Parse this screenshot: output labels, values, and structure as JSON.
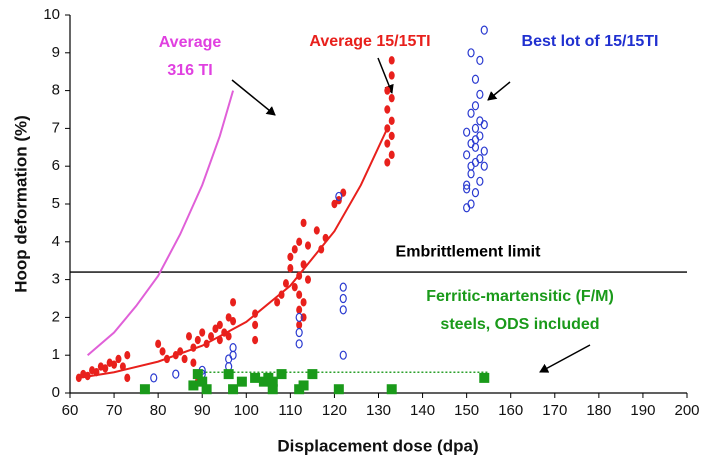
{
  "chart_data": {
    "type": "scatter",
    "xlabel": "Displacement dose (dpa)",
    "ylabel": "Hoop deformation (%)",
    "xlim": [
      60,
      200
    ],
    "ylim": [
      0,
      10
    ],
    "xticks": [
      60,
      70,
      80,
      90,
      100,
      110,
      120,
      130,
      140,
      150,
      160,
      170,
      180,
      190,
      200
    ],
    "yticks": [
      0,
      1,
      2,
      3,
      4,
      5,
      6,
      7,
      8,
      9,
      10
    ],
    "series": [
      {
        "marker": "line",
        "color": "#e060d8",
        "x": [
          64,
          70,
          75,
          80,
          85,
          90,
          94,
          97
        ],
        "y": [
          1.0,
          1.6,
          2.3,
          3.1,
          4.2,
          5.5,
          6.8,
          8.0
        ]
      },
      {
        "marker": "line",
        "color": "#e8201c",
        "x": [
          62,
          70,
          80,
          90,
          100,
          110,
          120,
          126,
          132
        ],
        "y": [
          0.4,
          0.55,
          0.83,
          1.25,
          1.88,
          2.84,
          4.28,
          5.5,
          7.0
        ]
      },
      {
        "marker": "dot",
        "color": "#e8201c",
        "x": [
          62,
          63,
          64,
          65,
          66,
          67,
          68,
          69,
          70,
          71,
          72,
          73,
          73,
          80,
          81,
          82,
          84,
          85,
          86,
          87,
          88,
          88,
          89,
          89,
          89,
          90,
          91,
          92,
          93,
          94,
          94,
          95,
          96,
          96,
          97,
          97,
          102,
          102,
          102,
          107,
          108,
          109,
          110,
          110,
          111,
          111,
          112,
          112,
          112,
          112,
          112,
          113,
          113,
          113,
          113,
          114,
          114,
          116,
          117,
          118,
          120,
          121,
          122,
          132,
          132,
          132,
          132,
          132,
          133,
          133,
          133,
          133,
          133,
          133
        ],
        "y": [
          0.4,
          0.5,
          0.45,
          0.6,
          0.55,
          0.7,
          0.65,
          0.8,
          0.75,
          0.9,
          0.7,
          1.0,
          0.4,
          1.3,
          1.1,
          0.9,
          1.0,
          1.1,
          0.9,
          1.5,
          1.2,
          0.8,
          1.4,
          0.5,
          0.3,
          1.6,
          1.3,
          1.5,
          1.7,
          1.4,
          1.8,
          1.6,
          2.0,
          1.5,
          2.4,
          1.9,
          1.4,
          1.8,
          2.1,
          2.4,
          2.6,
          2.9,
          3.3,
          3.6,
          3.8,
          2.8,
          1.8,
          2.2,
          2.6,
          3.1,
          4.0,
          4.5,
          3.4,
          2.4,
          2.0,
          3.9,
          3.0,
          4.3,
          3.8,
          4.1,
          5.0,
          5.1,
          5.3,
          6.1,
          6.6,
          7.0,
          7.5,
          8.0,
          8.8,
          8.4,
          7.8,
          7.2,
          6.8,
          6.3
        ]
      },
      {
        "marker": "open-circle",
        "color": "#2a3ad0",
        "x": [
          79,
          84,
          90,
          90,
          96,
          96,
          97,
          97,
          112,
          112,
          112,
          121,
          122,
          122,
          122,
          122,
          150,
          150,
          150,
          150,
          151,
          151,
          151,
          151,
          151,
          152,
          152,
          152,
          152,
          152,
          152,
          153,
          153,
          153,
          153,
          153,
          153,
          154,
          154,
          154,
          154,
          150,
          151,
          152
        ],
        "y": [
          0.4,
          0.5,
          0.5,
          0.6,
          0.7,
          0.9,
          1.0,
          1.2,
          1.3,
          1.6,
          2.0,
          5.2,
          1.0,
          2.2,
          2.5,
          2.8,
          4.9,
          5.5,
          6.3,
          6.9,
          5.0,
          5.8,
          6.6,
          7.4,
          9.0,
          5.3,
          6.1,
          6.5,
          7.0,
          7.6,
          8.3,
          5.6,
          6.2,
          6.8,
          7.2,
          7.9,
          8.8,
          6.0,
          6.4,
          7.1,
          9.6,
          5.4,
          6.0,
          6.7
        ]
      },
      {
        "marker": "square",
        "color": "#1a9a1a",
        "x": [
          77,
          88,
          89,
          90,
          91,
          96,
          97,
          99,
          102,
          104,
          105,
          106,
          106,
          108,
          112,
          113,
          115,
          121,
          133,
          154
        ],
        "y": [
          0.1,
          0.2,
          0.5,
          0.3,
          0.1,
          0.5,
          0.1,
          0.3,
          0.4,
          0.3,
          0.4,
          0.1,
          0.3,
          0.5,
          0.1,
          0.2,
          0.5,
          0.1,
          0.1,
          0.4
        ]
      }
    ],
    "hlines": [
      {
        "value": 3.2,
        "color": "#000000",
        "label": "Embrittlement limit"
      },
      {
        "value": 0.55,
        "from": 88,
        "to": 155,
        "color": "#2ca02c",
        "dashed": true
      }
    ],
    "annotations": [
      {
        "text": [
          "Average",
          "316 TI"
        ],
        "color": "#e040e0"
      },
      {
        "text": [
          "Average 15/15TI"
        ],
        "color": "#e8201c"
      },
      {
        "text": [
          "Best lot of 15/15TI"
        ],
        "color": "#2030d0"
      },
      {
        "text": [
          "Ferritic-martensitic (F/M)",
          "steels, ODS included"
        ],
        "color": "#1a9a1a"
      }
    ]
  }
}
